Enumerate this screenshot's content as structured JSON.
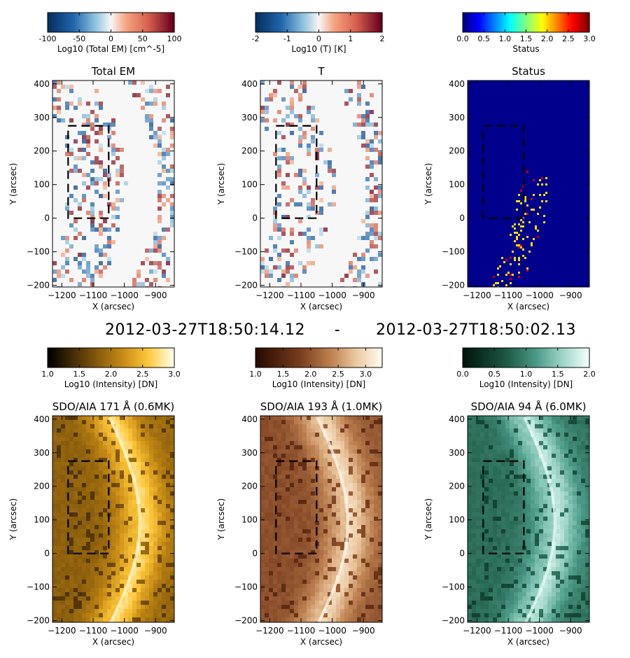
{
  "timestamp": {
    "left": "2012-03-27T18:50:14.12",
    "separator": "-",
    "right": "2012-03-27T18:50:02.13"
  },
  "axes": {
    "xlabel": "X (arcsec)",
    "ylabel": "Y (arcsec)",
    "xlim": [
      -1230,
      -840
    ],
    "ylim": [
      -205,
      410
    ],
    "xticks": [
      -1200,
      -1100,
      -1000,
      -900
    ],
    "yticks": [
      -200,
      -100,
      0,
      100,
      200,
      300,
      400
    ]
  },
  "roi_box": {
    "x": [
      -1180,
      -1050
    ],
    "y": [
      0,
      275
    ]
  },
  "chart_data": [
    {
      "type": "heatmap",
      "title": "Total EM",
      "colorbar": {
        "label": "Log10 (Total EM) [cm^-5]",
        "range": [
          -100,
          100
        ],
        "ticks": [
          "-100",
          "-50",
          "0",
          "50",
          "100"
        ],
        "colormap": "diverging-blue-white-red"
      }
    },
    {
      "type": "heatmap",
      "title": "T",
      "colorbar": {
        "label": "Log10 (T) [K]",
        "range": [
          -2,
          2
        ],
        "ticks": [
          "-2",
          "-1",
          "0",
          "1",
          "2"
        ],
        "colormap": "diverging-blue-white-red"
      }
    },
    {
      "type": "heatmap",
      "title": "Status",
      "colorbar": {
        "label": "Status",
        "range": [
          0,
          3
        ],
        "ticks": [
          "0.0",
          "0.5",
          "1.0",
          "1.5",
          "2.0",
          "2.5",
          "3.0"
        ],
        "colormap": "jet"
      }
    },
    {
      "type": "heatmap",
      "title": "SDO/AIA 171 Å (0.6MK)",
      "colorbar": {
        "label": "Log10 (Intensity) [DN]",
        "range": [
          1,
          3
        ],
        "ticks": [
          "1.0",
          "1.5",
          "2.0",
          "2.5",
          "3.0"
        ],
        "colormap": "sdoaia171"
      }
    },
    {
      "type": "heatmap",
      "title": "SDO/AIA 193 Å (1.0MK)",
      "colorbar": {
        "label": "Log10 (Intensity) [DN]",
        "range": [
          1,
          3.3
        ],
        "ticks": [
          "1.0",
          "1.5",
          "2.0",
          "2.5",
          "3.0"
        ],
        "colormap": "sdoaia193"
      }
    },
    {
      "type": "heatmap",
      "title": "SDO/AIA 94 Å (6.0MK)",
      "colorbar": {
        "label": "Log10 (Intensity) [DN]",
        "range": [
          0,
          2
        ],
        "ticks": [
          "0.0",
          "0.5",
          "1.0",
          "1.5",
          "2.0"
        ],
        "colormap": "sdoaia94"
      }
    }
  ]
}
